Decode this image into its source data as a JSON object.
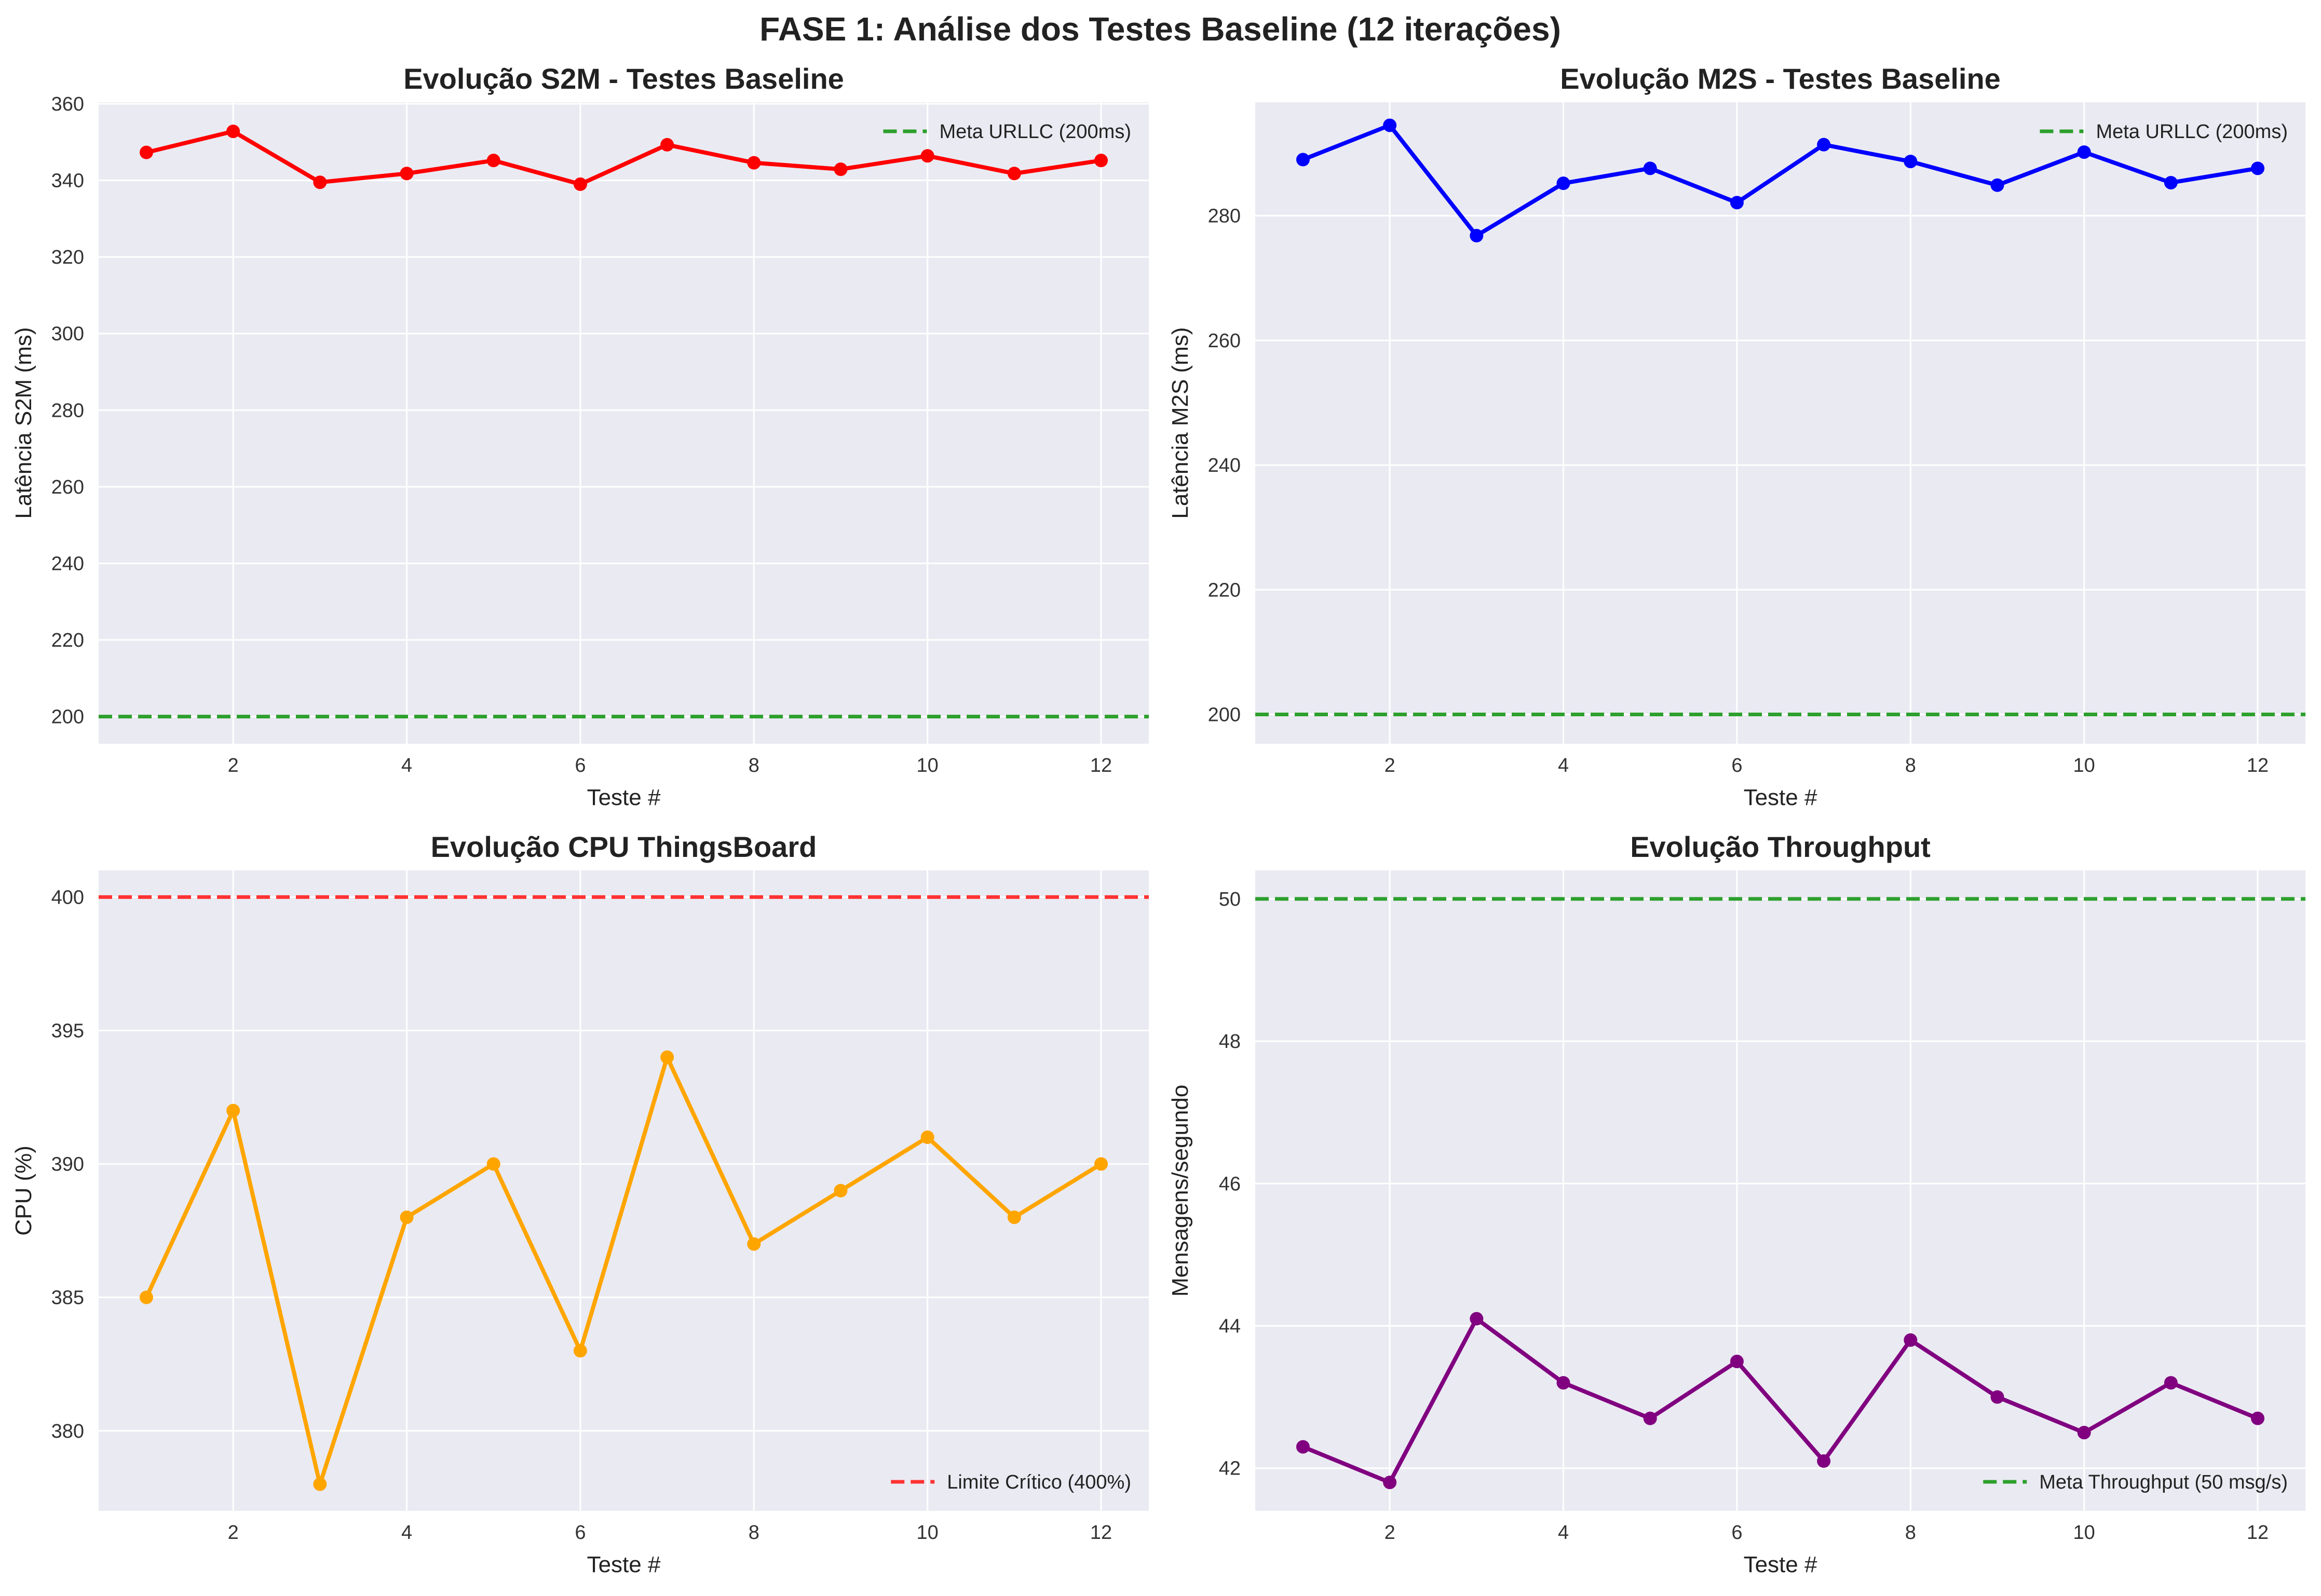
{
  "figure": {
    "suptitle": "FASE 1: Análise dos Testes Baseline (12 iterações)"
  },
  "chart_data": [
    {
      "type": "line",
      "title": "Evolução S2M - Testes Baseline",
      "xlabel": "Teste #",
      "ylabel": "Latência S2M (ms)",
      "x": [
        1,
        2,
        3,
        4,
        5,
        6,
        7,
        8,
        9,
        10,
        11,
        12
      ],
      "series": [
        {
          "values": [
            347.3,
            352.8,
            339.5,
            341.8,
            345.2,
            339.0,
            349.3,
            344.6,
            342.9,
            346.4,
            341.8,
            345.2
          ],
          "color": "#ff0000",
          "marker": "circle"
        }
      ],
      "reference_lines": [
        {
          "y": 200,
          "label": "Meta URLLC (200ms)",
          "color": "#2ca02c",
          "style": "dashed"
        }
      ],
      "xlim": [
        0.45,
        12.55
      ],
      "ylim": [
        192.9,
        360.4
      ],
      "xticks": [
        2,
        4,
        6,
        8,
        10,
        12
      ],
      "yticks": [
        200,
        220,
        240,
        260,
        280,
        300,
        320,
        340,
        360
      ],
      "legend_position": "upper right",
      "grid": true
    },
    {
      "type": "line",
      "title": "Evolução M2S - Testes Baseline",
      "xlabel": "Teste #",
      "ylabel": "Latência M2S (ms)",
      "x": [
        1,
        2,
        3,
        4,
        5,
        6,
        7,
        8,
        9,
        10,
        11,
        12
      ],
      "series": [
        {
          "values": [
            289.0,
            294.5,
            276.8,
            285.2,
            287.6,
            282.1,
            291.4,
            288.7,
            284.9,
            290.2,
            285.3,
            287.6
          ],
          "color": "#0000ff",
          "marker": "circle"
        }
      ],
      "reference_lines": [
        {
          "y": 200,
          "label": "Meta URLLC (200ms)",
          "color": "#2ca02c",
          "style": "dashed"
        }
      ],
      "xlim": [
        0.45,
        12.55
      ],
      "ylim": [
        195.3,
        298.2
      ],
      "xticks": [
        2,
        4,
        6,
        8,
        10,
        12
      ],
      "yticks": [
        200,
        220,
        240,
        260,
        280
      ],
      "legend_position": "upper right",
      "grid": true
    },
    {
      "type": "line",
      "title": "Evolução CPU ThingsBoard",
      "xlabel": "Teste #",
      "ylabel": "CPU (%)",
      "x": [
        1,
        2,
        3,
        4,
        5,
        6,
        7,
        8,
        9,
        10,
        11,
        12
      ],
      "series": [
        {
          "values": [
            385,
            392,
            378,
            388,
            390,
            383,
            394,
            387,
            389,
            391,
            388,
            390
          ],
          "color": "#ffa500",
          "marker": "circle"
        }
      ],
      "reference_lines": [
        {
          "y": 400,
          "label": "Limite Crítico (400%)",
          "color": "#ff3333",
          "style": "dashed"
        }
      ],
      "xlim": [
        0.45,
        12.55
      ],
      "ylim": [
        377.0,
        401.0
      ],
      "xticks": [
        2,
        4,
        6,
        8,
        10,
        12
      ],
      "yticks": [
        380,
        385,
        390,
        395,
        400
      ],
      "legend_position": "lower right",
      "grid": true
    },
    {
      "type": "line",
      "title": "Evolução Throughput",
      "xlabel": "Teste #",
      "ylabel": "Mensagens/segundo",
      "x": [
        1,
        2,
        3,
        4,
        5,
        6,
        7,
        8,
        9,
        10,
        11,
        12
      ],
      "series": [
        {
          "values": [
            42.3,
            41.8,
            44.1,
            43.2,
            42.7,
            43.5,
            42.1,
            43.8,
            43.0,
            42.5,
            43.2,
            42.7
          ],
          "color": "#800080",
          "marker": "circle"
        }
      ],
      "reference_lines": [
        {
          "y": 50,
          "label": "Meta Throughput (50 msg/s)",
          "color": "#2ca02c",
          "style": "dashed"
        }
      ],
      "xlim": [
        0.45,
        12.55
      ],
      "ylim": [
        41.4,
        50.4
      ],
      "xticks": [
        2,
        4,
        6,
        8,
        10,
        12
      ],
      "yticks": [
        42,
        44,
        46,
        48,
        50
      ],
      "legend_position": "lower right",
      "grid": true
    }
  ],
  "style": {
    "axes_background": "#eaeaf2",
    "grid_color": "#ffffff",
    "figure_background": "#ffffff"
  }
}
